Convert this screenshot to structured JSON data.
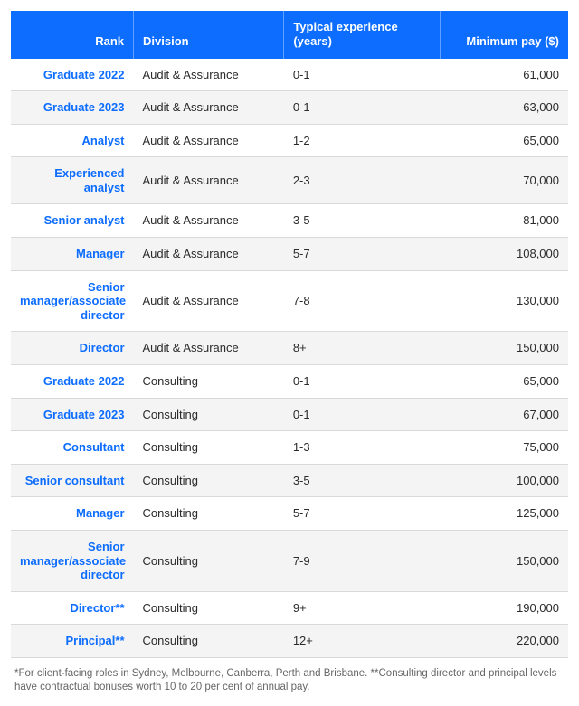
{
  "table": {
    "type": "table",
    "header_bg": "#0d6dff",
    "header_fg": "#ffffff",
    "row_alt_bg": "#f4f4f4",
    "row_bg": "#ffffff",
    "divider_color": "#d9d9d9",
    "body_fg": "#2b2b2b",
    "rank_fg": "#0d6dff",
    "footnote_fg": "#666666",
    "font_size_pt": 10,
    "rank_font_weight": 700,
    "columns": [
      {
        "key": "rank",
        "label": "Rank",
        "align": "right",
        "width_pct": 22
      },
      {
        "key": "division",
        "label": "Division",
        "align": "left",
        "width_pct": 27
      },
      {
        "key": "experience",
        "label": "Typical experience (years)",
        "align": "left",
        "width_pct": 28
      },
      {
        "key": "pay",
        "label": "Minimum pay ($)",
        "align": "right",
        "width_pct": 23
      }
    ],
    "rows": [
      {
        "rank": "Graduate 2022",
        "division": "Audit & Assurance",
        "experience": "0-1",
        "pay": "61,000"
      },
      {
        "rank": "Graduate 2023",
        "division": "Audit & Assurance",
        "experience": "0-1",
        "pay": "63,000"
      },
      {
        "rank": "Analyst",
        "division": "Audit & Assurance",
        "experience": "1-2",
        "pay": "65,000"
      },
      {
        "rank": "Experienced analyst",
        "division": "Audit & Assurance",
        "experience": "2-3",
        "pay": "70,000"
      },
      {
        "rank": "Senior analyst",
        "division": "Audit & Assurance",
        "experience": "3-5",
        "pay": "81,000"
      },
      {
        "rank": "Manager",
        "division": "Audit & Assurance",
        "experience": "5-7",
        "pay": "108,000"
      },
      {
        "rank": "Senior manager/associate director",
        "division": "Audit & Assurance",
        "experience": "7-8",
        "pay": "130,000"
      },
      {
        "rank": "Director",
        "division": "Audit & Assurance",
        "experience": "8+",
        "pay": "150,000"
      },
      {
        "rank": "Graduate 2022",
        "division": "Consulting",
        "experience": "0-1",
        "pay": "65,000"
      },
      {
        "rank": "Graduate 2023",
        "division": "Consulting",
        "experience": "0-1",
        "pay": "67,000"
      },
      {
        "rank": "Consultant",
        "division": "Consulting",
        "experience": "1-3",
        "pay": "75,000"
      },
      {
        "rank": "Senior consultant",
        "division": "Consulting",
        "experience": "3-5",
        "pay": "100,000"
      },
      {
        "rank": "Manager",
        "division": "Consulting",
        "experience": "5-7",
        "pay": "125,000"
      },
      {
        "rank": "Senior manager/associate director",
        "division": "Consulting",
        "experience": "7-9",
        "pay": "150,000"
      },
      {
        "rank": "Director**",
        "division": "Consulting",
        "experience": "9+",
        "pay": "190,000"
      },
      {
        "rank": "Principal**",
        "division": "Consulting",
        "experience": "12+",
        "pay": "220,000"
      }
    ],
    "footnote": "*For client-facing roles in Sydney, Melbourne, Canberra, Perth and Brisbane. **Consulting director and principal levels have contractual bonuses worth 10 to 20 per cent of annual pay."
  }
}
